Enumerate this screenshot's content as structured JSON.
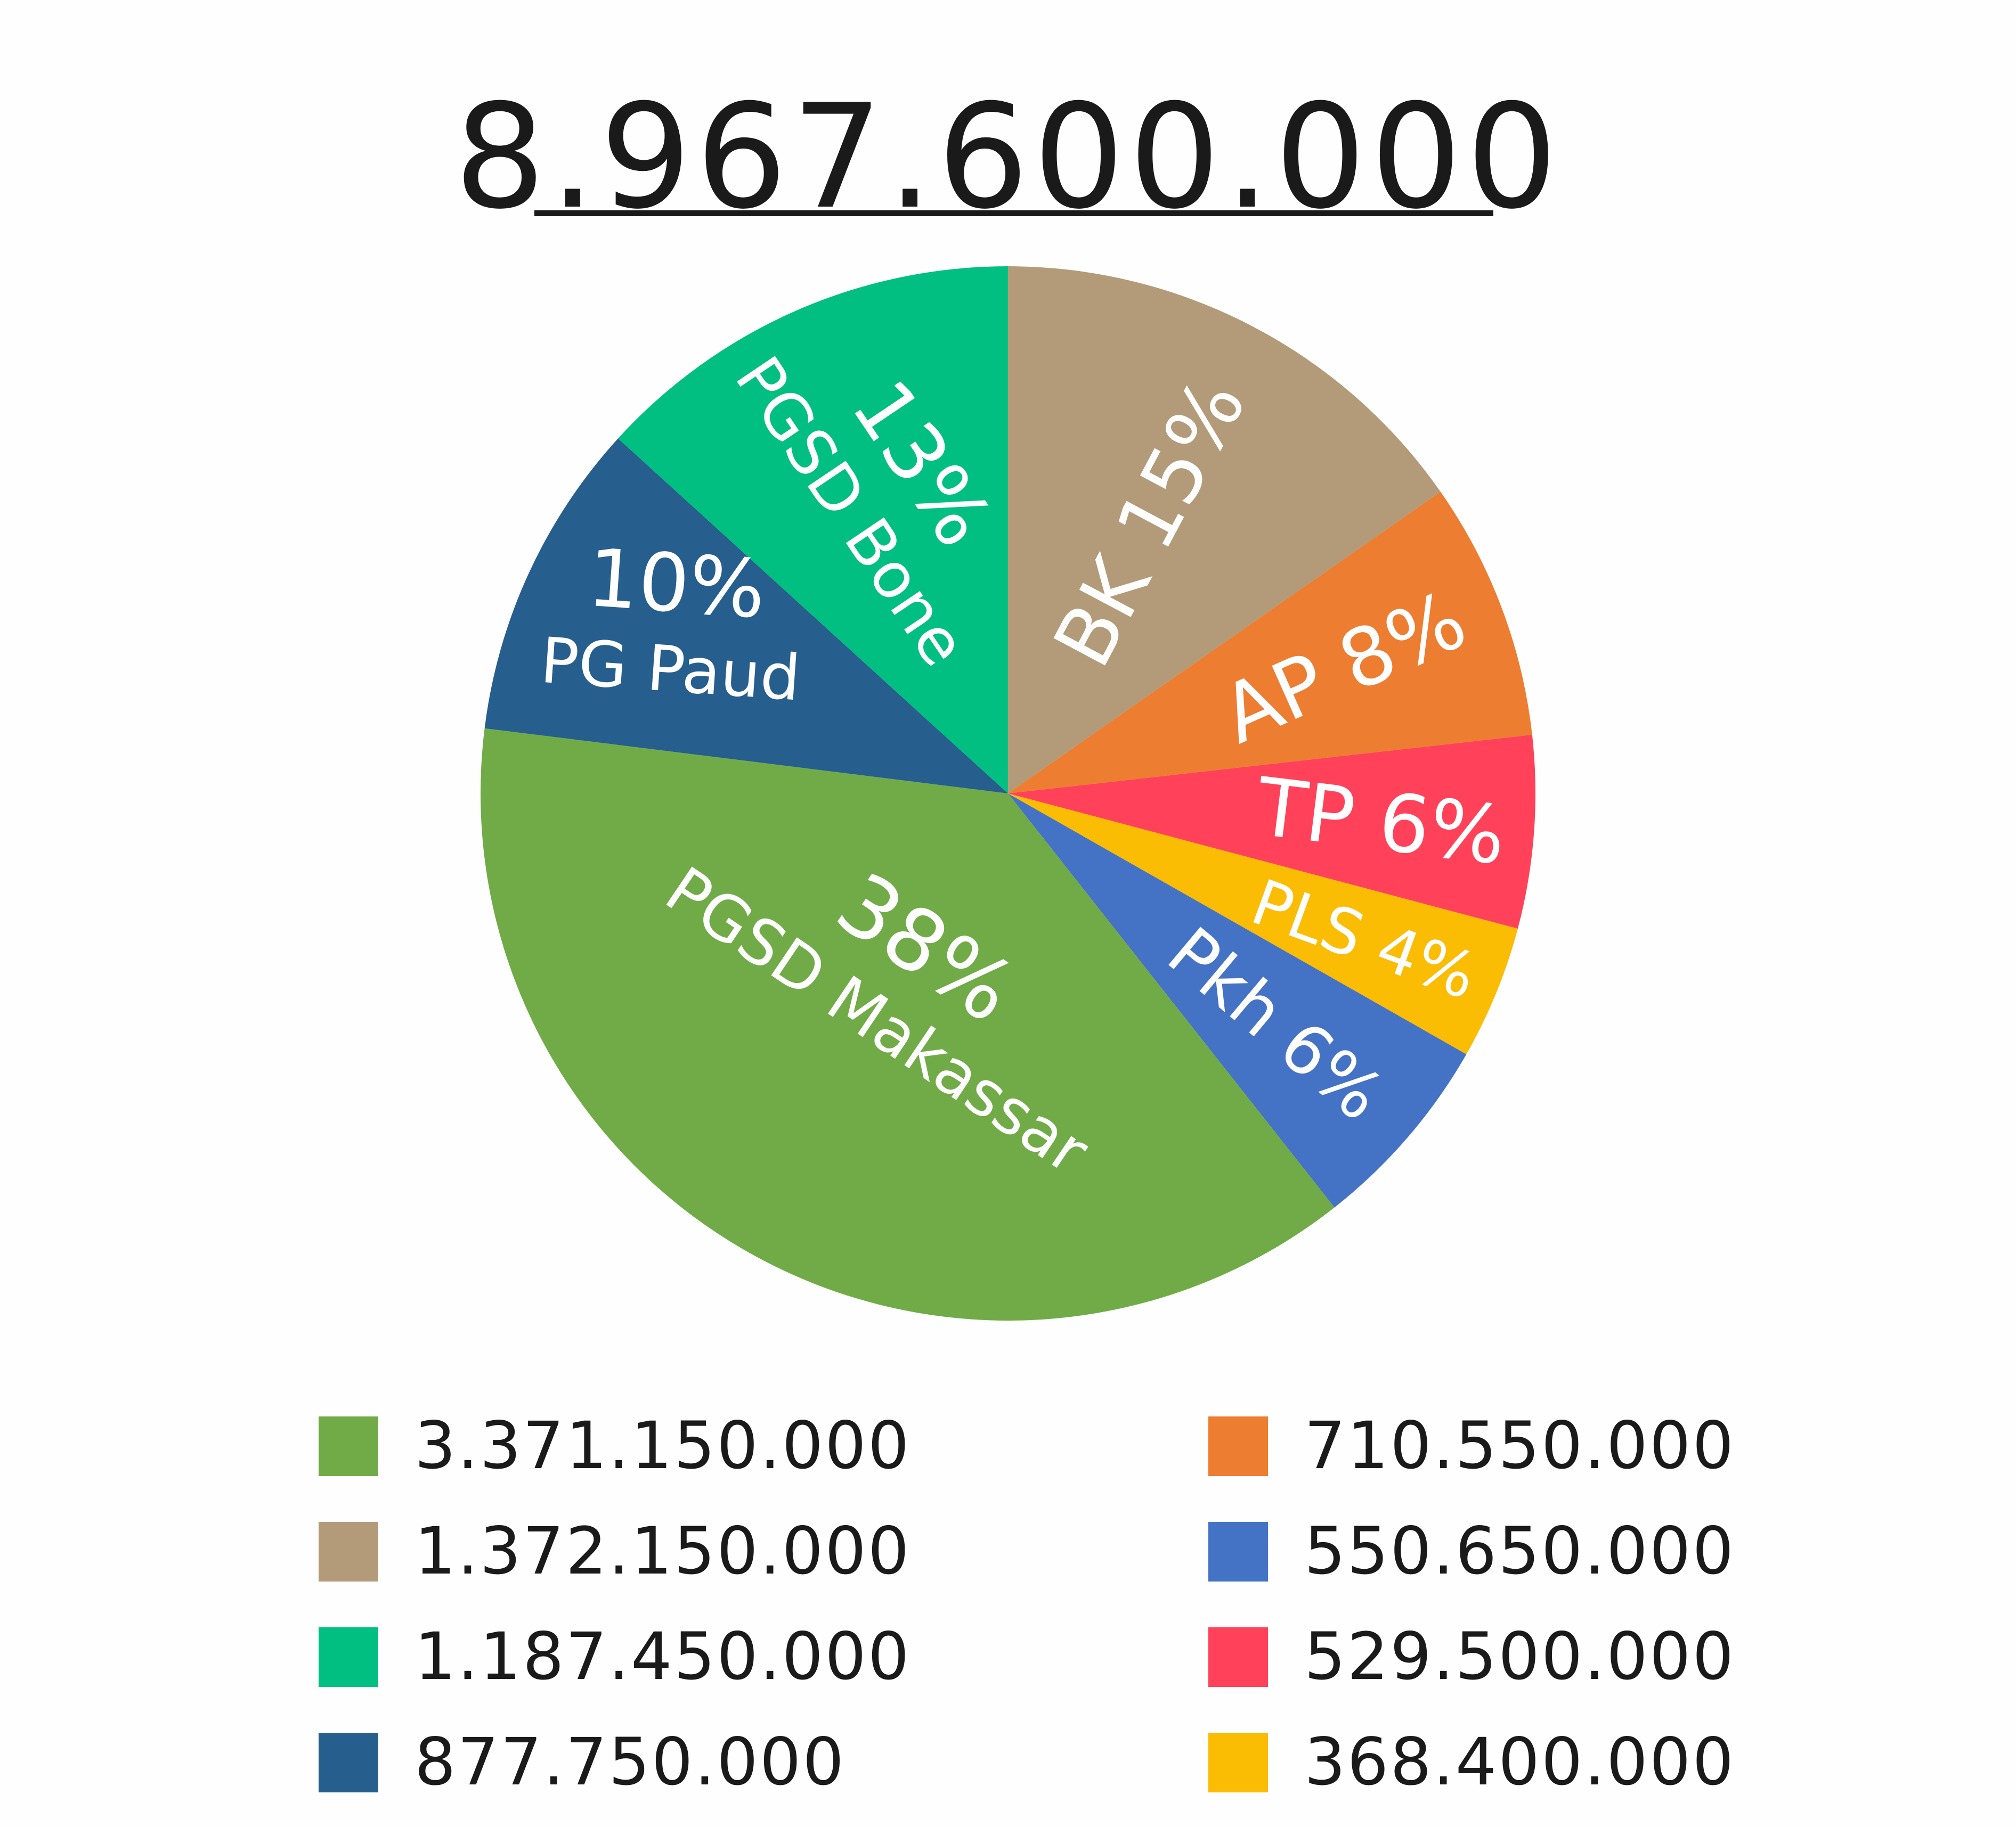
{
  "chart_data": {
    "type": "pie",
    "title": "8.967.600.000",
    "slices": [
      {
        "label": "BK",
        "display_label": "BK 15%",
        "percent": 15,
        "value": 1372150000,
        "legend_value": "1.372.150.000",
        "color": "#b39b79"
      },
      {
        "label": "AP",
        "display_label": "AP 8%",
        "percent": 8,
        "value": 710550000,
        "legend_value": "710.550.000",
        "color": "#ed7d31"
      },
      {
        "label": "TP",
        "display_label": "TP 6%",
        "percent": 6,
        "value": 529500000,
        "legend_value": "529.500.000",
        "color": "#ff425a"
      },
      {
        "label": "PLS",
        "display_label": "PLS 4%",
        "percent": 4,
        "value": 368400000,
        "legend_value": "368.400.000",
        "color": "#fbbc04"
      },
      {
        "label": "Pkh",
        "display_label": "Pkh 6%",
        "percent": 6,
        "value": 550650000,
        "legend_value": "550.650.000",
        "color": "#4472c4"
      },
      {
        "label": "PGSD Makassar",
        "display_percent": "38%",
        "percent": 38,
        "value": 3371150000,
        "legend_value": "3.371.150.000",
        "color": "#71ab48"
      },
      {
        "label": "PG Paud",
        "display_percent": "10%",
        "percent": 10,
        "value": 877750000,
        "legend_value": "877.750.000",
        "color": "#265e8d"
      },
      {
        "label": "PGSD Bone",
        "display_percent": "13%",
        "percent": 13,
        "value": 1187450000,
        "legend_value": "1.187.450.000",
        "color": "#00bf80"
      }
    ],
    "legend": {
      "placement": "bottom",
      "columns": [
        [
          "3.371.150.000",
          "1.372.150.000",
          "1.187.450.000",
          "877.750.000"
        ],
        [
          "710.550.000",
          "550.650.000",
          "529.500.000",
          "368.400.000"
        ]
      ],
      "column_colors": [
        [
          "#71ab48",
          "#b39b79",
          "#00bf80",
          "#265e8d"
        ],
        [
          "#ed7d31",
          "#4472c4",
          "#ff425a",
          "#fbbc04"
        ]
      ]
    }
  }
}
